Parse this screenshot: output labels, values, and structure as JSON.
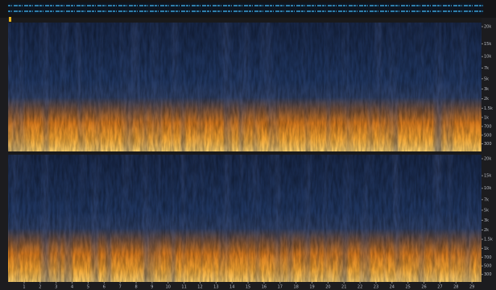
{
  "frequency_ruler": {
    "labels": [
      "20k",
      "15k",
      "10k",
      "7k",
      "5k",
      "3k",
      "2k",
      "1.5k",
      "1k",
      "700",
      "500",
      "300"
    ]
  },
  "time_ruler": {
    "labels": [
      "1",
      "2",
      "3",
      "4",
      "5",
      "6",
      "7",
      "8",
      "9",
      "10",
      "11",
      "12",
      "13",
      "14",
      "15",
      "16",
      "17",
      "18",
      "19",
      "20",
      "21",
      "22",
      "23",
      "24",
      "25",
      "26",
      "27",
      "28",
      "29"
    ]
  }
}
